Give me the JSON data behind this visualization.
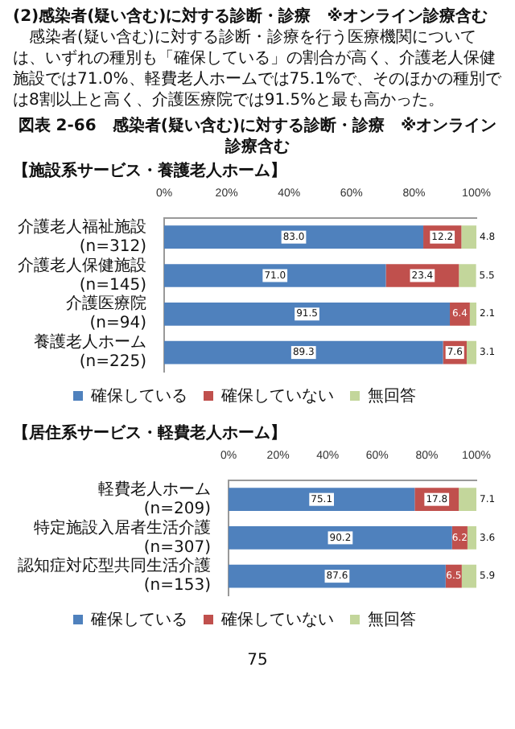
{
  "chart_data": [
    {
      "type": "bar",
      "orientation": "horizontal",
      "stacked": true,
      "title": "図表 2-66　感染者(疑い含む)に対する診断・診療　※オンライン診療含む",
      "subtitle": "【施設系サービス・養護老人ホーム】",
      "annotations": [
        "(2)感染者(疑い含む)に対する診断・診療　※オンライン診療含む",
        "感染者(疑い含む)に対する診断・診療を行う医療機関については、いずれの種別も「確保している」の割合が高く、介護老人保健施設では71.0%、軽費老人ホームでは75.1%で、そのほかの種別では8割以上と高く、介護医療院では91.5%と最も高かった。"
      ],
      "categories": [
        "介護老人福祉施設(n=312)",
        "介護老人保健施設(n=145)",
        "介護医療院(n=94)",
        "養護老人ホーム(n=225)"
      ],
      "series": [
        {
          "name": "確保している",
          "color": "#4f81bd",
          "values": [
            83.0,
            71.0,
            91.5,
            89.3
          ],
          "value_labels": [
            "83.0",
            "71.0",
            "91.5",
            "89.3"
          ]
        },
        {
          "name": "確保していない",
          "color": "#c0504d",
          "values": [
            12.2,
            23.4,
            6.4,
            7.6
          ],
          "value_labels": [
            "12.2",
            "23.4",
            "6.4",
            "7.6"
          ]
        },
        {
          "name": "無回答",
          "color": "#c3d69b",
          "values": [
            4.8,
            5.5,
            2.1,
            3.1
          ],
          "value_labels": [
            "4.8",
            "5.5",
            "2.1",
            "3.1"
          ]
        }
      ],
      "xlim": [
        0,
        100
      ],
      "xticks": [
        {
          "value": 0,
          "label": "0%"
        },
        {
          "value": 20,
          "label": "20%"
        },
        {
          "value": 40,
          "label": "40%"
        },
        {
          "value": 60,
          "label": "60%"
        },
        {
          "value": 80,
          "label": "80%"
        },
        {
          "value": 100,
          "label": "100%"
        }
      ],
      "legend": "bottom",
      "grid": false
    },
    {
      "type": "bar",
      "orientation": "horizontal",
      "stacked": true,
      "subtitle": "【居住系サービス・軽費老人ホーム】",
      "annotations": [
        "75"
      ],
      "categories": [
        "軽費老人ホーム(n=209)",
        "特定施設入居者生活介護(n=307)",
        "認知症対応型共同生活介護(n=153)"
      ],
      "series": [
        {
          "name": "確保している",
          "color": "#4f81bd",
          "values": [
            75.1,
            90.2,
            87.6
          ],
          "value_labels": [
            "75.1",
            "90.2",
            "87.6"
          ]
        },
        {
          "name": "確保していない",
          "color": "#c0504d",
          "values": [
            17.8,
            6.2,
            6.5
          ],
          "value_labels": [
            "17.8",
            "6.2",
            "6.5"
          ]
        },
        {
          "name": "無回答",
          "color": "#c3d69b",
          "values": [
            7.1,
            3.6,
            5.9
          ],
          "value_labels": [
            "7.1",
            "3.6",
            "5.9"
          ]
        }
      ],
      "xlim": [
        0,
        100
      ],
      "xticks": [
        {
          "value": 0,
          "label": "0%"
        },
        {
          "value": 20,
          "label": "20%"
        },
        {
          "value": 40,
          "label": "40%"
        },
        {
          "value": 60,
          "label": "60%"
        },
        {
          "value": 80,
          "label": "80%"
        },
        {
          "value": 100,
          "label": "100%"
        }
      ],
      "legend": "bottom",
      "grid": false
    }
  ]
}
